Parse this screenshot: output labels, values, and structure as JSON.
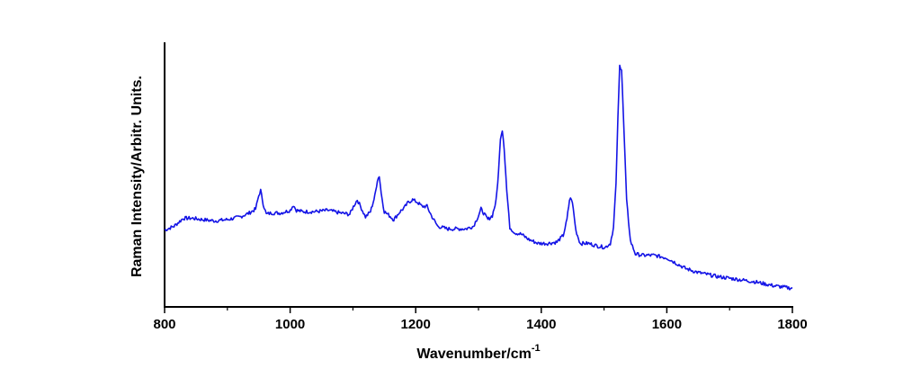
{
  "chart_data": {
    "type": "line",
    "xlabel": "Wavenumber/cm",
    "xlabel_superscript": "-1",
    "ylabel": "Raman Intensity/Arbitr. Units.",
    "xlim": [
      800,
      1800
    ],
    "ylim": [
      0,
      100
    ],
    "x_ticks": [
      "800",
      "1000",
      "1200",
      "1400",
      "1600",
      "1800"
    ],
    "y_tick_labels_shown": false,
    "grid": false,
    "legend": "none",
    "line_color": "#1414e6",
    "series": [
      {
        "x": [
          800,
          815,
          830,
          845,
          860,
          880,
          900,
          920,
          935,
          945,
          950,
          953,
          957,
          962,
          970,
          985,
          1000,
          1005,
          1010,
          1020,
          1040,
          1060,
          1080,
          1095,
          1102,
          1107,
          1112,
          1120,
          1128,
          1135,
          1139,
          1142,
          1145,
          1150,
          1158,
          1165,
          1175,
          1182,
          1188,
          1195,
          1203,
          1210,
          1218,
          1225,
          1235,
          1250,
          1265,
          1280,
          1292,
          1300,
          1304,
          1308,
          1315,
          1322,
          1328,
          1332,
          1335,
          1338,
          1341,
          1345,
          1350,
          1358,
          1368,
          1380,
          1395,
          1410,
          1425,
          1435,
          1441,
          1445,
          1448,
          1451,
          1455,
          1462,
          1475,
          1490,
          1502,
          1510,
          1515,
          1519,
          1522,
          1525,
          1528,
          1532,
          1536,
          1542,
          1550,
          1562,
          1580,
          1600,
          1615,
          1630,
          1650,
          1680,
          1710,
          1740,
          1770,
          1800
        ],
        "values": [
          29,
          30.5,
          33.5,
          33.5,
          33,
          32.5,
          33,
          34,
          35.5,
          37,
          42,
          44,
          39,
          35,
          35.5,
          35.5,
          36.5,
          38.5,
          36.5,
          36,
          36,
          36.5,
          35.5,
          35,
          38.5,
          40.5,
          38,
          34,
          36,
          42,
          48,
          49.5,
          43,
          36,
          34.5,
          33,
          36,
          37.5,
          39.5,
          40.5,
          39.5,
          38,
          38,
          34.5,
          30.5,
          29.5,
          29.5,
          29.5,
          30.5,
          34.5,
          37,
          35.5,
          33,
          34.5,
          40,
          51,
          64,
          67,
          60,
          44,
          30,
          28,
          27.5,
          25.5,
          24,
          24,
          24.5,
          27,
          33,
          40.5,
          41,
          37,
          29,
          24,
          24,
          23,
          22.5,
          24,
          30,
          46,
          71,
          91,
          90,
          65,
          40,
          25,
          20,
          19.5,
          19.5,
          18.5,
          16.5,
          14.5,
          13,
          11.5,
          10.5,
          9.5,
          8,
          7
        ]
      }
    ]
  }
}
